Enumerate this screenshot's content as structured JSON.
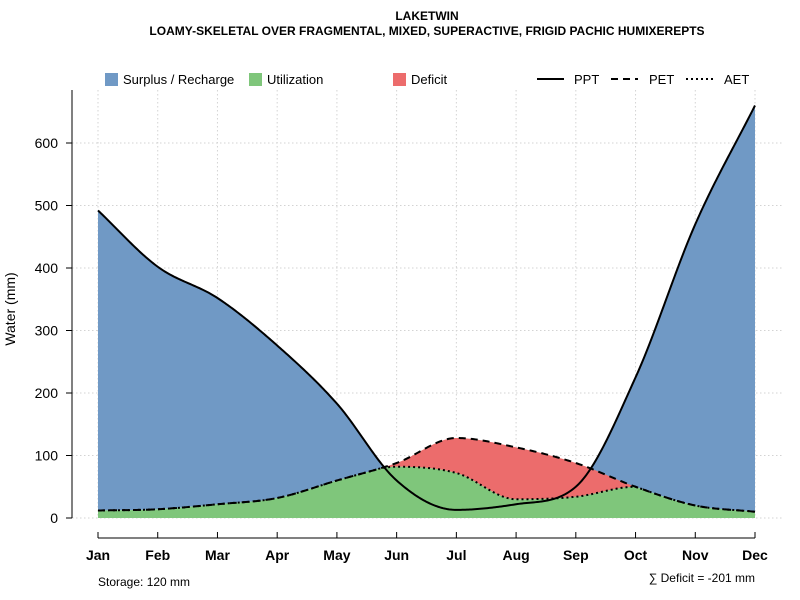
{
  "chart_data": {
    "type": "area",
    "title": "LAKETWIN",
    "subtitle": "LOAMY-SKELETAL OVER FRAGMENTAL, MIXED, SUPERACTIVE, FRIGID PACHIC HUMIXEREPTS",
    "xlabel": "",
    "ylabel": "Water (mm)",
    "ylim": [
      0,
      700
    ],
    "yticks": [
      0,
      100,
      200,
      300,
      400,
      500,
      600
    ],
    "grid": true,
    "categories": [
      "Jan",
      "Feb",
      "Mar",
      "Apr",
      "May",
      "Jun",
      "Jul",
      "Aug",
      "Sep",
      "Oct",
      "Nov",
      "Dec"
    ],
    "series": [
      {
        "name": "PPT",
        "line_style": "solid",
        "values": [
          492,
          402,
          352,
          276,
          183,
          60,
          13,
          22,
          50,
          225,
          470,
          660
        ]
      },
      {
        "name": "PET",
        "line_style": "dashed",
        "values": [
          12,
          14,
          22,
          32,
          60,
          88,
          128,
          113,
          88,
          50,
          20,
          10
        ]
      },
      {
        "name": "AET",
        "line_style": "dotted",
        "values": [
          12,
          14,
          22,
          32,
          60,
          82,
          72,
          30,
          34,
          50,
          20,
          10
        ]
      }
    ],
    "areas": [
      {
        "name": "Surplus / Recharge",
        "color": "#7099c5"
      },
      {
        "name": "Utilization",
        "color": "#7fc67b"
      },
      {
        "name": "Deficit",
        "color": "#ec6c6c"
      }
    ],
    "legend_placement": "top",
    "annotations": {
      "storage": "Storage: 120 mm",
      "deficit": "∑ Deficit = -201 mm"
    }
  }
}
